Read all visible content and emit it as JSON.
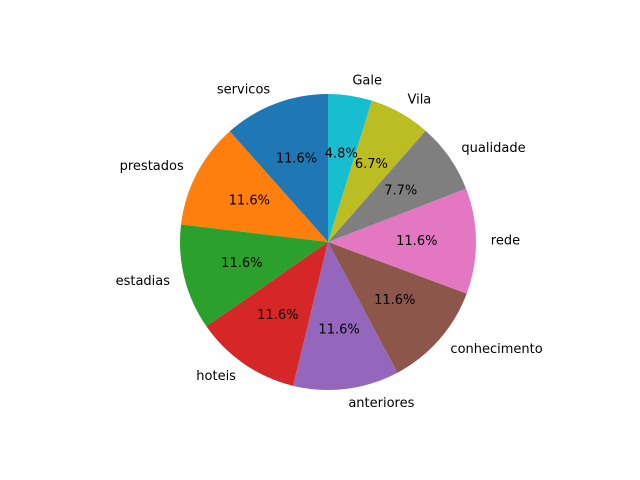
{
  "chart_data": {
    "type": "pie",
    "categories": [
      "servicos",
      "prestados",
      "estadias",
      "hoteis",
      "anteriores",
      "conhecimento",
      "rede",
      "qualidade",
      "Vila",
      "Gale"
    ],
    "values": [
      11.6,
      11.6,
      11.6,
      11.6,
      11.6,
      11.6,
      11.6,
      7.7,
      6.7,
      4.8
    ],
    "percent_labels": [
      "11.6%",
      "11.6%",
      "11.6%",
      "11.6%",
      "11.6%",
      "11.6%",
      "11.6%",
      "7.7%",
      "6.7%",
      "4.8%"
    ],
    "colors": [
      "#1f77b4",
      "#ff7f0e",
      "#2ca02c",
      "#d62728",
      "#9467bd",
      "#8c564b",
      "#e377c2",
      "#7f7f7f",
      "#bcbd22",
      "#17becf"
    ],
    "start_angle_deg": 90,
    "direction": "counterclockwise",
    "title": ""
  }
}
